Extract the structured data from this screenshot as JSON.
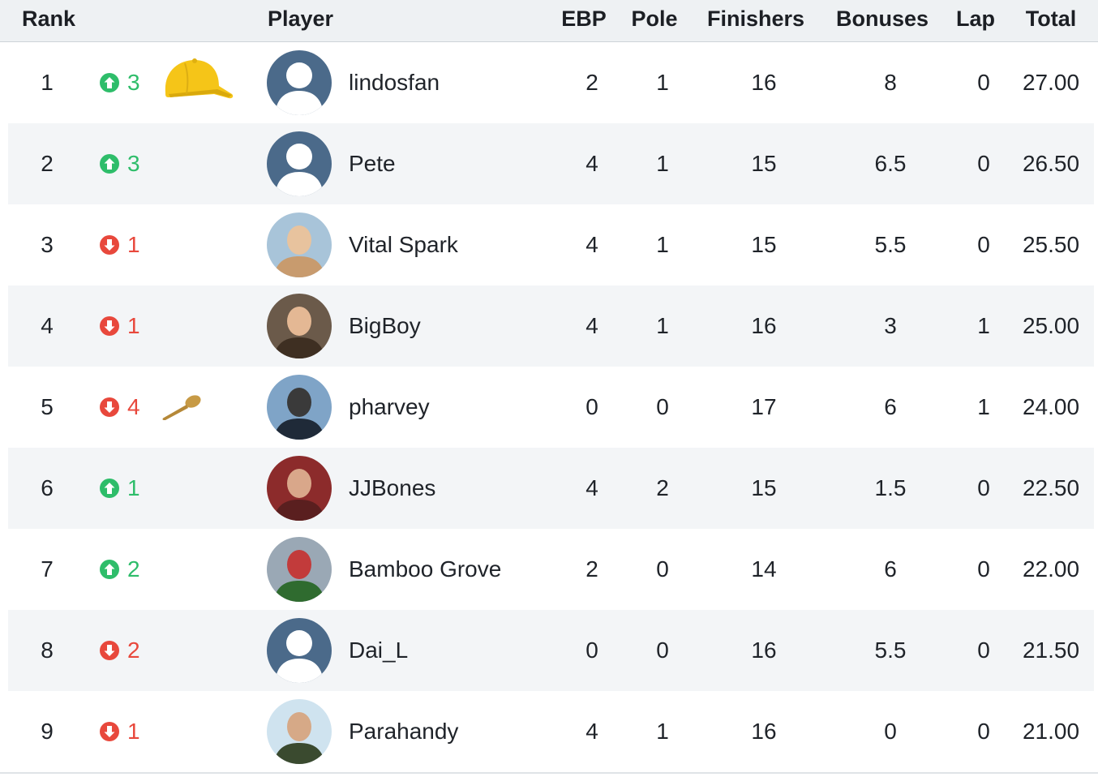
{
  "columns": {
    "rank": "Rank",
    "player": "Player",
    "ebp": "EBP",
    "pole": "Pole",
    "finishers": "Finishers",
    "bonuses": "Bonuses",
    "lap": "Lap",
    "total": "Total"
  },
  "colors": {
    "up": "#2ebd6a",
    "down": "#e8483c",
    "header_bg": "#eef1f3",
    "stripe_bg": "#f3f5f7"
  },
  "rows": [
    {
      "rank": "1",
      "movement": "up",
      "change": "3",
      "award": "yellow-cap-icon",
      "avatar": "default-avatar",
      "name": "lindosfan",
      "ebp": "2",
      "pole": "1",
      "finishers": "16",
      "bonuses": "8",
      "lap": "0",
      "total": "27.00"
    },
    {
      "rank": "2",
      "movement": "up",
      "change": "3",
      "award": "",
      "avatar": "default-avatar",
      "name": "Pete",
      "ebp": "4",
      "pole": "1",
      "finishers": "15",
      "bonuses": "6.5",
      "lap": "0",
      "total": "26.50"
    },
    {
      "rank": "3",
      "movement": "down",
      "change": "1",
      "award": "",
      "avatar": "photo-avatar",
      "name": "Vital Spark",
      "ebp": "4",
      "pole": "1",
      "finishers": "15",
      "bonuses": "5.5",
      "lap": "0",
      "total": "25.50"
    },
    {
      "rank": "4",
      "movement": "down",
      "change": "1",
      "award": "",
      "avatar": "photo-avatar",
      "name": "BigBoy",
      "ebp": "4",
      "pole": "1",
      "finishers": "16",
      "bonuses": "3",
      "lap": "1",
      "total": "25.00"
    },
    {
      "rank": "5",
      "movement": "down",
      "change": "4",
      "award": "wooden-spoon-icon",
      "avatar": "photo-avatar",
      "name": "pharvey",
      "ebp": "0",
      "pole": "0",
      "finishers": "17",
      "bonuses": "6",
      "lap": "1",
      "total": "24.00"
    },
    {
      "rank": "6",
      "movement": "up",
      "change": "1",
      "award": "",
      "avatar": "photo-avatar",
      "name": "JJBones",
      "ebp": "4",
      "pole": "2",
      "finishers": "15",
      "bonuses": "1.5",
      "lap": "0",
      "total": "22.50"
    },
    {
      "rank": "7",
      "movement": "up",
      "change": "2",
      "award": "",
      "avatar": "photo-avatar",
      "name": "Bamboo Grove",
      "ebp": "2",
      "pole": "0",
      "finishers": "14",
      "bonuses": "6",
      "lap": "0",
      "total": "22.00"
    },
    {
      "rank": "8",
      "movement": "down",
      "change": "2",
      "award": "",
      "avatar": "default-avatar",
      "name": "Dai_L",
      "ebp": "0",
      "pole": "0",
      "finishers": "16",
      "bonuses": "5.5",
      "lap": "0",
      "total": "21.50"
    },
    {
      "rank": "9",
      "movement": "down",
      "change": "1",
      "award": "",
      "avatar": "photo-avatar",
      "name": "Parahandy",
      "ebp": "4",
      "pole": "1",
      "finishers": "16",
      "bonuses": "0",
      "lap": "0",
      "total": "21.00"
    }
  ]
}
